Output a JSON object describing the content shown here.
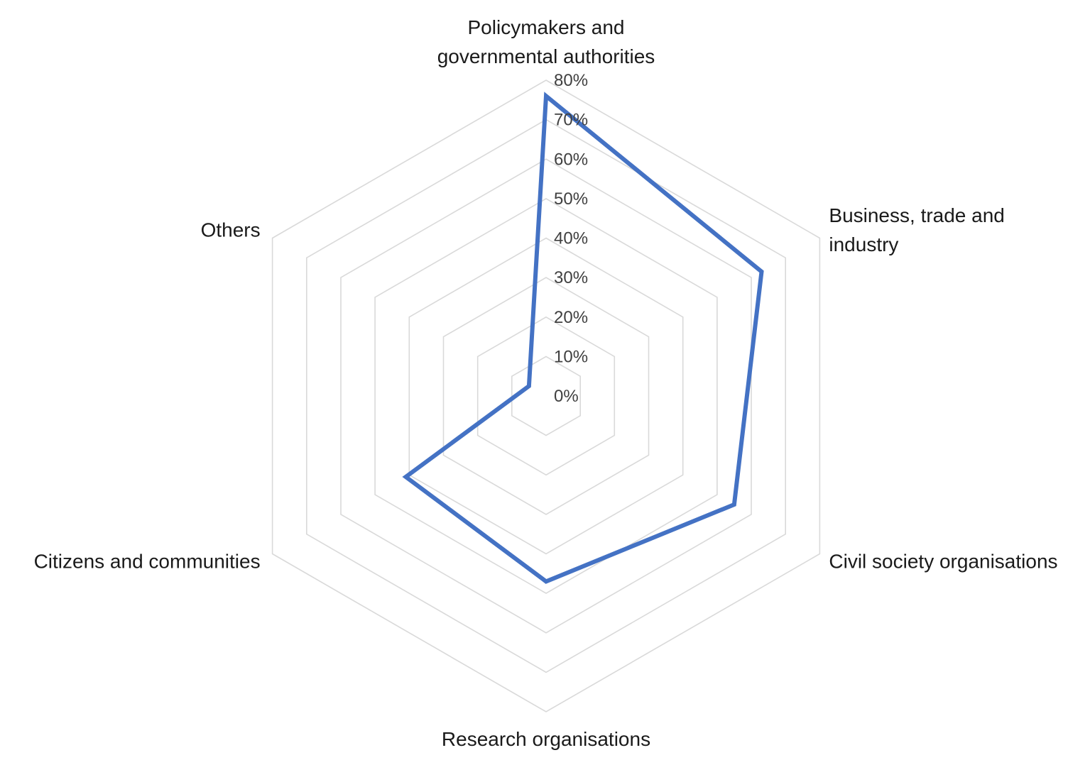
{
  "chart_data": {
    "type": "radar",
    "categories": [
      "Policymakers and governmental authorities",
      "Business, trade and industry",
      "Civil society organisations",
      "Research organisations",
      "Citizens and communities",
      "Others"
    ],
    "category_lines": [
      [
        "Policymakers and",
        "governmental authorities"
      ],
      [
        "Business, trade and",
        "industry"
      ],
      [
        "Civil society organisations"
      ],
      [
        "Research organisations"
      ],
      [
        "Citizens and communities"
      ],
      [
        "Others"
      ]
    ],
    "series": [
      {
        "values": [
          0.76,
          0.63,
          0.55,
          0.47,
          0.41,
          0.05
        ],
        "color": "#4472c4"
      }
    ],
    "rlim": [
      0,
      0.8
    ],
    "ticks": [
      "0%",
      "10%",
      "20%",
      "30%",
      "40%",
      "50%",
      "60%",
      "70%",
      "80%"
    ],
    "grid": true,
    "legend": "none",
    "title": ""
  }
}
